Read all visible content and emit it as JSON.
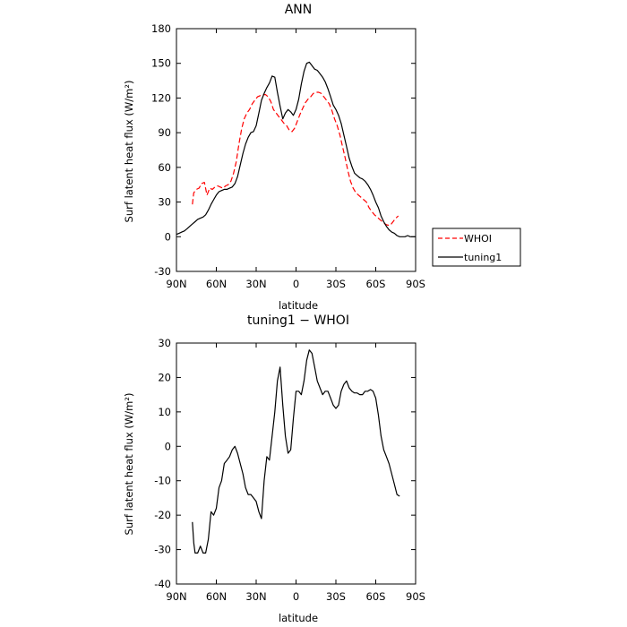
{
  "chart_data": [
    {
      "type": "line",
      "title": "ANN",
      "xlabel": "latitude",
      "ylabel": "Surf latent heat flux (W/m²)",
      "xlim": [
        90,
        -90
      ],
      "ylim": [
        -30,
        180
      ],
      "xticks": [
        90,
        60,
        30,
        0,
        -30,
        -60,
        -90
      ],
      "xtick_labels": [
        "90N",
        "60N",
        "30N",
        "0",
        "30S",
        "60S",
        "90S"
      ],
      "yticks": [
        -30,
        0,
        30,
        60,
        90,
        120,
        150,
        180
      ],
      "ytick_labels": [
        "-30",
        "0",
        "30",
        "60",
        "90",
        "120",
        "150",
        "180"
      ],
      "legend_position": "outside-right",
      "series": [
        {
          "name": "WHOI",
          "color": "#ff0000",
          "dash": "dashed",
          "x": [
            78,
            77,
            75,
            73,
            71,
            69,
            67,
            65,
            63,
            61,
            59,
            57,
            55,
            53,
            51,
            49,
            47,
            45,
            43,
            41,
            39,
            37,
            35,
            33,
            31,
            29,
            27,
            25,
            23,
            21,
            19,
            17,
            15,
            13,
            11,
            9,
            7,
            5,
            3,
            1,
            -1,
            -3,
            -5,
            -7,
            -9,
            -11,
            -13,
            -15,
            -17,
            -19,
            -21,
            -23,
            -25,
            -27,
            -29,
            -31,
            -33,
            -35,
            -37,
            -39,
            -41,
            -43,
            -45,
            -47,
            -49,
            -51,
            -53,
            -55,
            -57,
            -59,
            -61,
            -63,
            -65,
            -67,
            -69,
            -71,
            -73,
            -75,
            -77
          ],
          "y": [
            28,
            38,
            41,
            42,
            46,
            47,
            36,
            42,
            41,
            43,
            44,
            43,
            42,
            44,
            45,
            48,
            55,
            65,
            80,
            93,
            102,
            107,
            110,
            115,
            118,
            121,
            122,
            123,
            123,
            121,
            117,
            110,
            107,
            104,
            101,
            98,
            96,
            92,
            91,
            94,
            100,
            106,
            111,
            116,
            119,
            121,
            124,
            125,
            125,
            124,
            121,
            118,
            115,
            109,
            102,
            96,
            88,
            78,
            68,
            57,
            48,
            42,
            38,
            36,
            34,
            32,
            30,
            25,
            22,
            19,
            17,
            15,
            13,
            11,
            10,
            10,
            13,
            16,
            18
          ]
        },
        {
          "name": "tuning1",
          "color": "#000000",
          "dash": "solid",
          "x": [
            90,
            88,
            86,
            84,
            82,
            80,
            78,
            76,
            74,
            72,
            70,
            68,
            66,
            64,
            62,
            60,
            58,
            56,
            54,
            52,
            50,
            48,
            46,
            44,
            42,
            40,
            38,
            36,
            34,
            32,
            30,
            28,
            26,
            24,
            22,
            20,
            18,
            16,
            14,
            12,
            10,
            8,
            6,
            4,
            2,
            0,
            -2,
            -4,
            -6,
            -8,
            -10,
            -12,
            -14,
            -16,
            -18,
            -20,
            -22,
            -24,
            -26,
            -28,
            -30,
            -32,
            -34,
            -36,
            -38,
            -40,
            -42,
            -44,
            -46,
            -48,
            -50,
            -52,
            -54,
            -56,
            -58,
            -60,
            -62,
            -64,
            -66,
            -68,
            -70,
            -72,
            -74,
            -76,
            -78,
            -80,
            -82,
            -84,
            -86,
            -88,
            -90
          ],
          "y": [
            2,
            3,
            4,
            5,
            7,
            9,
            11,
            13,
            15,
            16,
            17,
            19,
            23,
            28,
            32,
            36,
            39,
            40,
            41,
            41,
            42,
            43,
            46,
            52,
            62,
            72,
            80,
            86,
            90,
            91,
            96,
            107,
            118,
            124,
            129,
            133,
            139,
            138,
            125,
            113,
            102,
            107,
            110,
            108,
            105,
            110,
            119,
            132,
            143,
            150,
            151,
            148,
            145,
            144,
            141,
            138,
            134,
            128,
            121,
            114,
            110,
            105,
            98,
            88,
            78,
            68,
            61,
            55,
            53,
            51,
            50,
            48,
            45,
            41,
            36,
            30,
            25,
            18,
            13,
            9,
            6,
            4,
            3,
            1,
            0,
            0,
            0,
            1,
            0,
            0,
            0
          ]
        }
      ]
    },
    {
      "type": "line",
      "title": "tuning1 − WHOI",
      "xlabel": "latitude",
      "ylabel": "Surf latent heat flux (W/m²)",
      "xlim": [
        90,
        -90
      ],
      "ylim": [
        -40,
        30
      ],
      "xticks": [
        90,
        60,
        30,
        0,
        -30,
        -60,
        -90
      ],
      "xtick_labels": [
        "90N",
        "60N",
        "30N",
        "0",
        "30S",
        "60S",
        "90S"
      ],
      "yticks": [
        -40,
        -30,
        -20,
        -10,
        0,
        10,
        20,
        30
      ],
      "ytick_labels": [
        "-40",
        "-30",
        "-20",
        "-10",
        "0",
        "10",
        "20",
        "30"
      ],
      "series": [
        {
          "color": "#000000",
          "dash": "solid",
          "x": [
            78,
            77,
            76,
            74,
            72,
            70,
            68,
            66,
            64,
            62,
            60,
            58,
            56,
            54,
            52,
            50,
            48,
            46,
            44,
            42,
            40,
            38,
            36,
            34,
            32,
            30,
            28,
            26,
            24,
            22,
            20,
            18,
            16,
            14,
            12,
            10,
            8,
            6,
            4,
            2,
            0,
            -2,
            -4,
            -6,
            -8,
            -10,
            -12,
            -14,
            -16,
            -18,
            -20,
            -22,
            -24,
            -26,
            -28,
            -30,
            -32,
            -34,
            -36,
            -38,
            -40,
            -42,
            -44,
            -46,
            -48,
            -50,
            -52,
            -54,
            -56,
            -58,
            -60,
            -62,
            -64,
            -66,
            -68,
            -70,
            -72,
            -74,
            -76,
            -78
          ],
          "y": [
            -22,
            -28,
            -31,
            -31,
            -29,
            -31,
            -31,
            -27,
            -19,
            -20,
            -18,
            -12,
            -10,
            -5,
            -4,
            -3,
            -1,
            0,
            -2,
            -5,
            -8,
            -12,
            -14,
            -14,
            -15,
            -16,
            -19,
            -21,
            -10,
            -3,
            -4,
            3,
            10,
            19,
            23,
            12,
            3,
            -2,
            -1,
            8,
            16,
            16,
            15,
            19,
            25,
            28,
            27,
            23,
            19,
            17,
            15,
            16,
            16,
            14,
            12,
            11,
            12,
            16,
            18,
            19,
            17,
            16,
            15.5,
            15.5,
            15,
            15,
            16,
            16,
            16.5,
            16,
            14,
            9,
            3,
            -1,
            -3,
            -5,
            -8,
            -11,
            -14,
            -14.5
          ]
        }
      ]
    }
  ]
}
